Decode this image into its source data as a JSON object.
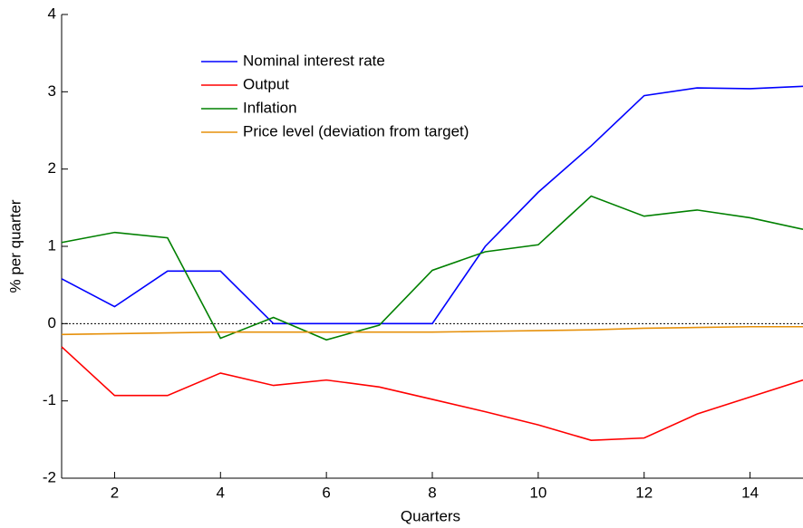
{
  "chart_data": {
    "type": "line",
    "x_label": "Quarters",
    "y_label": "% per quarter",
    "x": [
      1,
      2,
      3,
      4,
      5,
      6,
      7,
      8,
      9,
      10,
      11,
      12,
      13,
      14,
      15
    ],
    "series": [
      {
        "name": "Nominal interest rate",
        "color": "#0000ff",
        "values": [
          0.58,
          0.22,
          0.68,
          0.68,
          0,
          0,
          0,
          0,
          1.0,
          1.7,
          2.3,
          2.95,
          3.05,
          3.04,
          3.07
        ]
      },
      {
        "name": "Output",
        "color": "#ff0000",
        "values": [
          -0.3,
          -0.93,
          -0.93,
          -0.64,
          -0.8,
          -0.73,
          -0.82,
          -0.98,
          -1.14,
          -1.31,
          -1.51,
          -1.48,
          -1.17,
          -0.95,
          -0.73
        ]
      },
      {
        "name": "Inflation",
        "color": "#008000",
        "values": [
          1.05,
          1.18,
          1.11,
          -0.19,
          0.08,
          -0.21,
          -0.02,
          0.69,
          0.93,
          1.02,
          1.65,
          1.39,
          1.47,
          1.37,
          1.22
        ]
      },
      {
        "name": "Price level (deviation from target)",
        "color": "#e6900a",
        "values": [
          -0.14,
          -0.13,
          -0.12,
          -0.11,
          -0.11,
          -0.11,
          -0.11,
          -0.11,
          -0.1,
          -0.09,
          -0.08,
          -0.06,
          -0.05,
          -0.04,
          -0.04
        ]
      }
    ],
    "xlim": [
      1,
      15
    ],
    "xticks": [
      2,
      4,
      6,
      8,
      10,
      12,
      14
    ],
    "ylim": [
      -2,
      4
    ],
    "yticks": [
      -2,
      -1,
      0,
      1,
      2,
      3,
      4
    ],
    "zero_line": true,
    "legend": "upper-left"
  }
}
